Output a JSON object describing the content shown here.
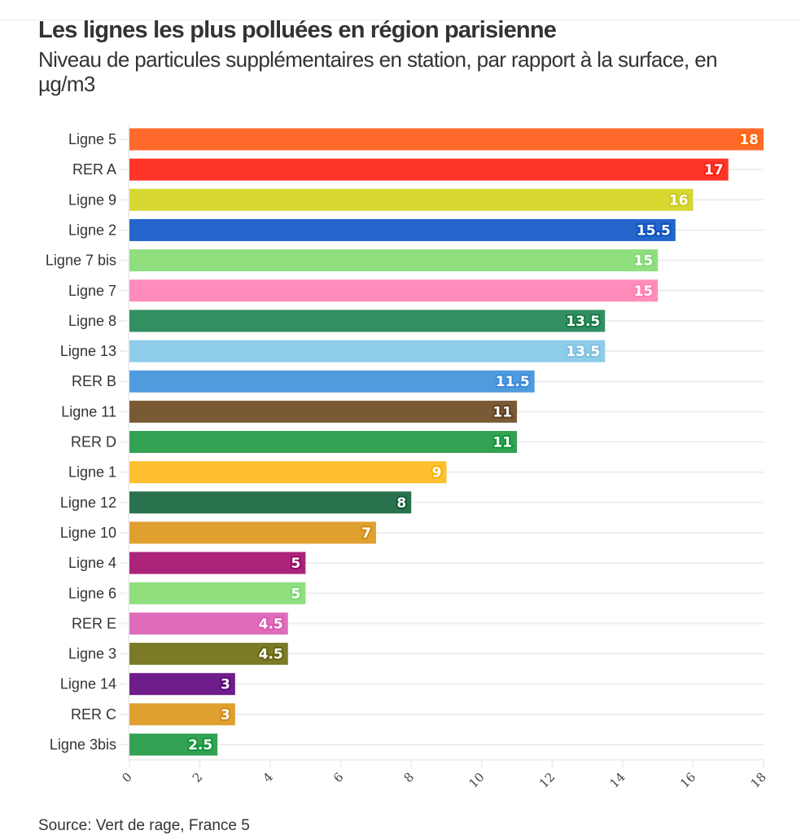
{
  "header": {
    "title": "Les lignes les plus polluées en région parisienne",
    "subtitle": "Niveau de particules supplémentaires en station, par rapport à la surface, en µg/m3"
  },
  "footer": {
    "source": "Source: Vert de rage, France 5"
  },
  "chart_data": {
    "type": "bar",
    "orientation": "horizontal",
    "title": "Les lignes les plus polluées en région parisienne",
    "subtitle": "Niveau de particules supplémentaires en station, par rapport à la surface, en µg/m3",
    "xlabel": "",
    "ylabel": "",
    "xlim": [
      0,
      18
    ],
    "x_ticks": [
      0,
      2,
      4,
      6,
      8,
      10,
      12,
      14,
      16,
      18
    ],
    "x_tick_rotation_deg": -45,
    "grid": true,
    "legend": "none",
    "data_labels": true,
    "categories": [
      "Ligne 5",
      "RER A",
      "Ligne 9",
      "Ligne 2",
      "Ligne 7 bis",
      "Ligne 7",
      "Ligne 8",
      "Ligne 13",
      "RER B",
      "Ligne 11",
      "RER D",
      "Ligne 1",
      "Ligne 12",
      "Ligne 10",
      "Ligne 4",
      "Ligne 6",
      "RER E",
      "Ligne 3",
      "Ligne 14",
      "RER C",
      "Ligne 3bis"
    ],
    "values": [
      18,
      17,
      16,
      15.5,
      15,
      15,
      13.5,
      13.5,
      11.5,
      11,
      11,
      9,
      8,
      7,
      5,
      5,
      4.5,
      4.5,
      3,
      3,
      2.5
    ],
    "value_labels": [
      "18",
      "17",
      "16",
      "15.5",
      "15",
      "15",
      "13.5",
      "13.5",
      "11.5",
      "11",
      "11",
      "9",
      "8",
      "7",
      "5",
      "5",
      "4.5",
      "4.5",
      "3",
      "3",
      "2.5"
    ],
    "colors": [
      "#ff6a2b",
      "#ff3529",
      "#d7d732",
      "#2465cc",
      "#8fdf7f",
      "#ff8dbb",
      "#328f62",
      "#8ecce9",
      "#4f9bde",
      "#7a5a34",
      "#34a253",
      "#ffbf2f",
      "#2a724d",
      "#e0a030",
      "#ab2479",
      "#8fdf7f",
      "#e06cbc",
      "#7a7a27",
      "#6f1d8a",
      "#e0a030",
      "#34a253"
    ],
    "label_outline_colors": [
      "#ff5f00",
      "#ff1f0f",
      "#c8c81e",
      "#0a50c0",
      "#82d870",
      "#ff7fb0",
      "#147a46",
      "#7ec0e0",
      "#3a8ad8",
      "#5e4020",
      "#10943a",
      "#f4b000",
      "#0e5a35",
      "#d08c10",
      "#960a64",
      "#80d870",
      "#d858b0",
      "#666612",
      "#5a0878",
      "#d08c10",
      "#10943a"
    ]
  }
}
